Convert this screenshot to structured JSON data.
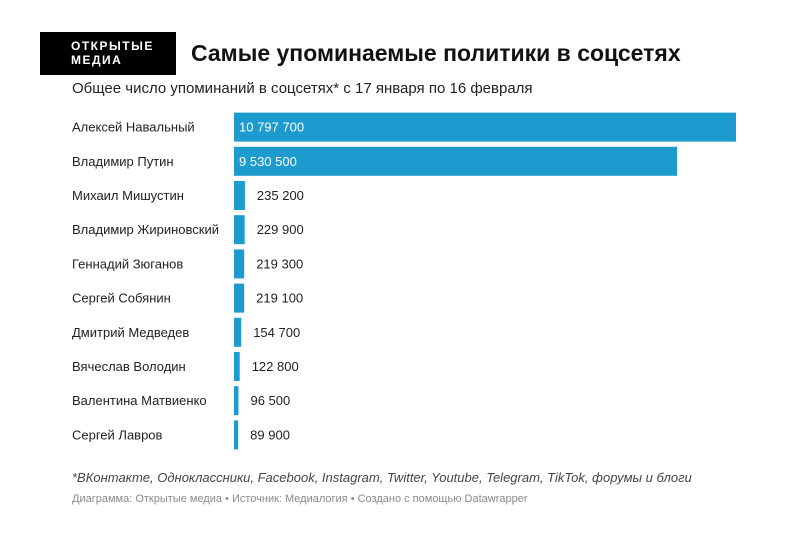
{
  "logo": {
    "line1": "ОТКРЫТЫЕ",
    "line2": "МЕДИА"
  },
  "colors": {
    "bar": "#1d9bcf",
    "label_on_bar": "#ffffff",
    "text": "#222222"
  },
  "chart_data": {
    "type": "bar",
    "orientation": "horizontal",
    "title": "Самые упоминаемые политики в соцсетях",
    "subtitle": "Общее число упоминаний в соцсетях* с 17 января по 16 февраля",
    "categories": [
      "Алексей Навальный",
      "Владимир Путин",
      "Михаил Мишустин",
      "Владимир Жириновский",
      "Геннадий Зюганов",
      "Сергей Собянин",
      "Дмитрий Медведев",
      "Вячеслав Володин",
      "Валентина Матвиенко",
      "Сергей Лавров"
    ],
    "values": [
      10797700,
      9530500,
      235200,
      229900,
      219300,
      219100,
      154700,
      122800,
      96500,
      89900
    ],
    "value_labels": [
      "10 797 700",
      "9 530 500",
      "235 200",
      "229 900",
      "219 300",
      "219 100",
      "154 700",
      "122 800",
      "96 500",
      "89 900"
    ],
    "xlim": [
      0,
      10797700
    ],
    "grid": false,
    "legend": "none"
  },
  "footnote": "*ВКонтакте, Одноклассники, Facebook, Instagram, Twitter, Youtube, Telegram, TikTok, форумы и блоги",
  "credits": "Диаграмма: Открытые медиа • Источник: Медиалогия • Создано с помощью Datawrapper"
}
